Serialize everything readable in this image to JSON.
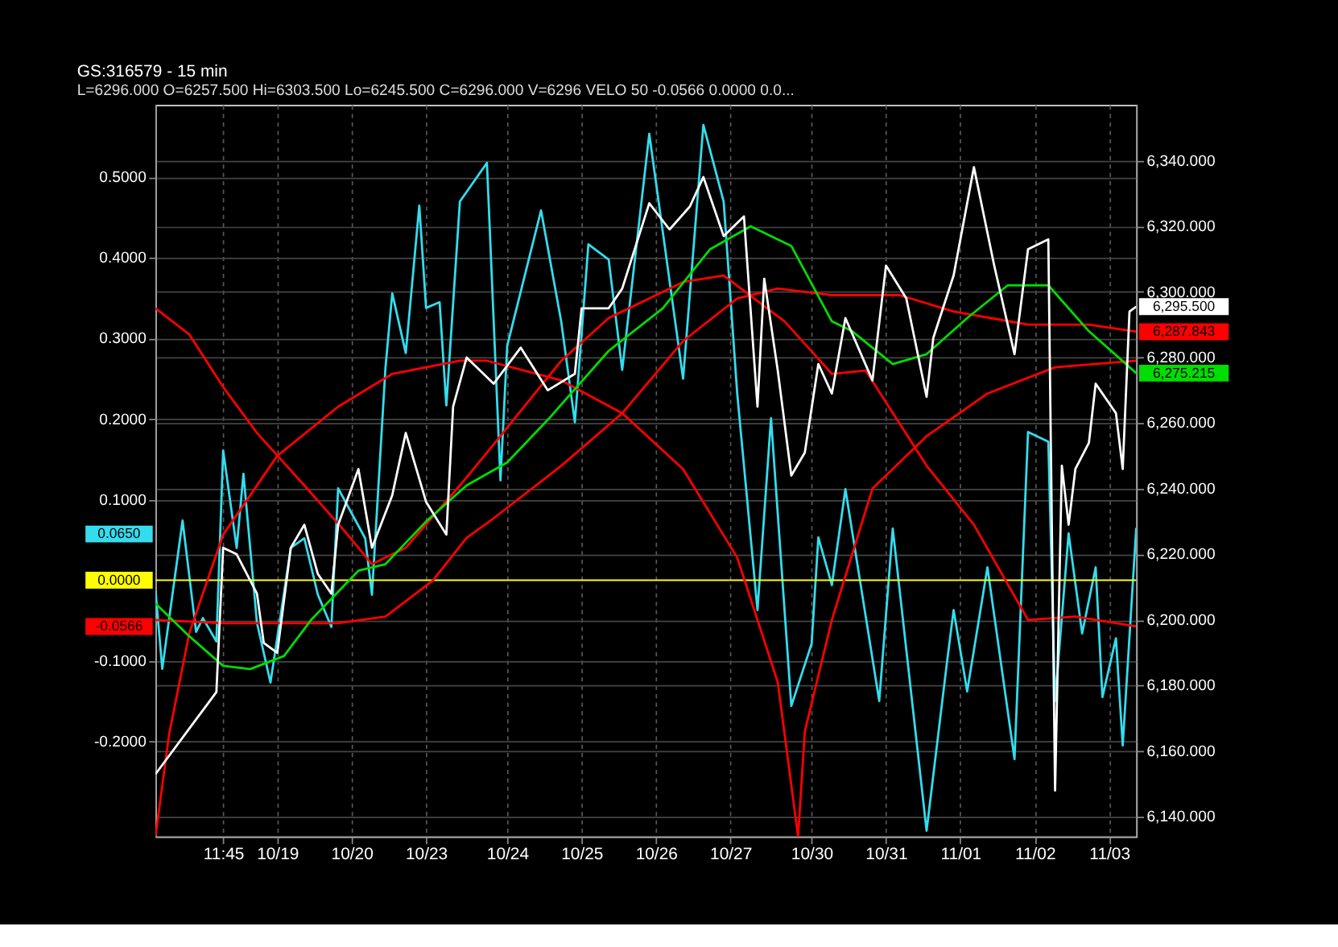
{
  "chart_data": {
    "type": "line",
    "title": "GS:316579 - 15 min",
    "annotations": [
      "L=6296.000",
      "O=6257.500",
      "Hi=6303.500",
      "Lo=6245.500",
      "C=6296.000",
      "V=6296",
      "VELO 50",
      "-0.0566",
      "0.0000",
      "0.0...",
      "0.0650",
      "-0.0566"
    ],
    "categories": [
      null,
      null,
      null,
      null,
      null,
      null,
      null,
      null,
      null,
      null,
      "11:45",
      null,
      null,
      null,
      null,
      null,
      null,
      null,
      "10/19",
      null,
      null,
      null,
      null,
      null,
      null,
      null,
      null,
      null,
      null,
      "10/20",
      null,
      null,
      null,
      null,
      null,
      null,
      null,
      null,
      null,
      null,
      "10/23",
      null,
      null,
      null,
      null,
      null,
      null,
      null,
      null,
      null,
      null,
      null,
      "10/24",
      null,
      null,
      null,
      null,
      null,
      null,
      null,
      null,
      null,
      null,
      "10/25",
      null,
      null,
      null,
      null,
      null,
      null,
      null,
      null,
      null,
      null,
      "10/26",
      null,
      null,
      null,
      null,
      null,
      null,
      null,
      null,
      null,
      null,
      "10/27",
      null,
      null,
      null,
      null,
      null,
      null,
      null,
      null,
      null,
      null,
      null,
      "10/30",
      null,
      null,
      null,
      null,
      null,
      null,
      null,
      null,
      null,
      null,
      "10/31",
      null,
      null,
      null,
      null,
      null,
      null,
      null,
      null,
      null,
      null,
      "11/01",
      null,
      null,
      null,
      null,
      null,
      null,
      null,
      null,
      null,
      null,
      "11/02",
      null,
      null,
      null,
      null,
      null,
      null,
      null,
      null,
      null,
      null,
      "11/03",
      null,
      null,
      null,
      null
    ],
    "ylim": [
      -0.318,
      0.59
    ],
    "yticks": [
      {
        "value": -0.2,
        "label": "-0.2000"
      },
      {
        "value": -0.1,
        "label": "-0.1000"
      },
      {
        "value": 0.1,
        "label": "0.1000"
      },
      {
        "value": 0.2,
        "label": "0.2000"
      },
      {
        "value": 0.3,
        "label": "0.3000"
      },
      {
        "value": 0.4,
        "label": "0.4000"
      },
      {
        "value": 0.5,
        "label": "0.5000"
      }
    ],
    "y2lim": [
      6134,
      6357
    ],
    "y2ticks": [
      {
        "value": 6140,
        "label": "6,140.000"
      },
      {
        "value": 6160,
        "label": "6,160.000"
      },
      {
        "value": 6180,
        "label": "6,180.000"
      },
      {
        "value": 6200,
        "label": "6,200.000"
      },
      {
        "value": 6220,
        "label": "6,220.000"
      },
      {
        "value": 6240,
        "label": "6,240.000"
      },
      {
        "value": 6260,
        "label": "6,260.000"
      },
      {
        "value": 6280,
        "label": "6,280.000"
      },
      {
        "value": 6300,
        "label": "6,300.000"
      },
      {
        "value": 6320,
        "label": "6,320.000"
      },
      {
        "value": 6340,
        "label": "6,340.000"
      }
    ],
    "grid": true,
    "ref_lines": [
      {
        "axis": "y",
        "value": 0,
        "label": "0.0000",
        "color": "#ffff00"
      }
    ],
    "series": [
      {
        "color": "#ff0000",
        "axis": "y2",
        "values": [
          6134,
          null,
          6165,
          null,
          null,
          6196,
          null,
          null,
          null,
          null,
          6226,
          null,
          null,
          null,
          null,
          null,
          null,
          null,
          6250,
          null,
          null,
          null,
          null,
          null,
          null,
          null,
          null,
          6265,
          null,
          null,
          null,
          null,
          null,
          null,
          null,
          6275,
          null,
          null,
          null,
          null,
          null,
          null,
          null,
          null,
          null,
          6279,
          null,
          null,
          null,
          6279,
          null,
          null,
          null,
          null,
          null,
          null,
          null,
          null,
          null,
          null,
          6273,
          null,
          null,
          null,
          null,
          null,
          null,
          null,
          null,
          6263,
          null,
          null,
          null,
          null,
          null,
          null,
          null,
          null,
          6246,
          null,
          null,
          null,
          null,
          null,
          null,
          null,
          6219,
          null,
          null,
          null,
          null,
          null,
          6181,
          null,
          null,
          6134,
          6166,
          null,
          null,
          null,
          6200,
          null,
          null,
          null,
          null,
          null,
          6240,
          null,
          null,
          null,
          null,
          null,
          null,
          null,
          6256,
          null,
          null,
          null,
          null,
          null,
          null,
          null,
          null,
          6269,
          null,
          null,
          null,
          null,
          null,
          null,
          null,
          null,
          null,
          6277,
          null,
          null,
          null,
          null,
          null,
          null,
          null,
          null,
          null,
          null,
          null,
          6279
        ]
      },
      {
        "color": "#ff0000",
        "axis": "y2",
        "values": [
          6295,
          null,
          null,
          null,
          null,
          6287,
          null,
          null,
          null,
          null,
          6271,
          null,
          null,
          null,
          null,
          6257,
          null,
          null,
          null,
          null,
          null,
          null,
          6241,
          null,
          null,
          null,
          null,
          null,
          6227,
          null,
          null,
          null,
          6217,
          null,
          null,
          null,
          null,
          6222,
          null,
          null,
          null,
          null,
          null,
          null,
          null,
          6241,
          null,
          null,
          null,
          6251,
          null,
          null,
          null,
          null,
          null,
          null,
          null,
          null,
          null,
          null,
          6279,
          null,
          null,
          null,
          null,
          null,
          null,
          6292,
          null,
          null,
          null,
          null,
          null,
          null,
          null,
          null,
          null,
          null,
          6303,
          null,
          null,
          null,
          null,
          null,
          6305,
          null,
          null,
          null,
          null,
          null,
          null,
          null,
          null,
          6291,
          null,
          null,
          null,
          null,
          null,
          null,
          6275,
          null,
          null,
          null,
          null,
          6276,
          null,
          null,
          null,
          null,
          null,
          null,
          null,
          null,
          6247,
          null,
          null,
          null,
          null,
          null,
          null,
          6229,
          null,
          null,
          null,
          null,
          null,
          null,
          null,
          6200,
          null,
          null,
          null,
          null,
          null,
          null,
          6201,
          null,
          null,
          null,
          null,
          null,
          null,
          null,
          null,
          6198
        ]
      },
      {
        "color": "#ff0000",
        "axis": "y2",
        "values": [
          6200,
          null,
          null,
          null,
          null,
          null,
          null,
          null,
          null,
          null,
          6199,
          null,
          null,
          null,
          null,
          null,
          null,
          null,
          6199,
          null,
          null,
          null,
          null,
          null,
          null,
          null,
          null,
          6199,
          null,
          null,
          null,
          null,
          null,
          null,
          6201,
          null,
          null,
          null,
          null,
          null,
          null,
          6212,
          null,
          null,
          null,
          null,
          6225,
          null,
          null,
          null,
          6231,
          null,
          null,
          null,
          null,
          null,
          null,
          null,
          null,
          null,
          6247,
          null,
          null,
          null,
          null,
          null,
          null,
          null,
          null,
          6263,
          null,
          null,
          null,
          null,
          null,
          null,
          null,
          null,
          6285,
          null,
          null,
          null,
          null,
          null,
          null,
          null,
          6298,
          null,
          null,
          null,
          null,
          null,
          6301,
          null,
          null,
          null,
          null,
          null,
          null,
          null,
          6299,
          null,
          null,
          null,
          null,
          null,
          null,
          null,
          null,
          null,
          6299,
          null,
          null,
          null,
          null,
          null,
          null,
          null,
          6294,
          null,
          null,
          null,
          null,
          null,
          null,
          null,
          null,
          null,
          null,
          6290,
          null,
          null,
          null,
          null,
          null,
          null,
          null,
          null,
          6290,
          null,
          null,
          null,
          null,
          null,
          null,
          6287.843
        ],
        "value_labels": [
          null,
          null,
          null,
          null,
          null,
          null,
          null,
          null,
          null,
          null,
          null,
          null,
          null,
          null,
          null,
          null,
          null,
          null,
          null,
          null,
          null,
          null,
          null,
          null,
          null,
          null,
          null,
          null,
          null,
          null,
          null,
          null,
          null,
          null,
          null,
          null,
          null,
          null,
          null,
          null,
          null,
          null,
          null,
          null,
          null,
          null,
          null,
          null,
          null,
          null,
          null,
          null,
          null,
          null,
          null,
          null,
          null,
          null,
          null,
          null,
          null,
          null,
          null,
          null,
          null,
          null,
          null,
          null,
          null,
          null,
          null,
          null,
          null,
          null,
          null,
          null,
          null,
          null,
          null,
          null,
          null,
          null,
          null,
          null,
          null,
          null,
          null,
          null,
          null,
          null,
          null,
          null,
          null,
          null,
          null,
          null,
          null,
          null,
          null,
          null,
          null,
          null,
          null,
          null,
          null,
          null,
          null,
          null,
          null,
          null,
          null,
          null,
          null,
          null,
          null,
          null,
          null,
          null,
          null,
          null,
          null,
          null,
          null,
          null,
          null,
          null,
          null,
          null,
          null,
          null,
          null,
          null,
          null,
          null,
          null,
          null,
          null,
          null,
          null,
          null,
          null,
          null,
          null,
          null,
          null,
          "6,287.843"
        ]
      },
      {
        "color": "#00dd00",
        "axis": "y2",
        "values": [
          6205,
          null,
          null,
          null,
          null,
          6195,
          null,
          null,
          null,
          null,
          6186,
          null,
          null,
          null,
          6185,
          null,
          null,
          null,
          null,
          6189,
          null,
          null,
          null,
          6200,
          null,
          null,
          null,
          null,
          null,
          null,
          6215,
          null,
          null,
          null,
          6217,
          null,
          null,
          null,
          null,
          null,
          6230,
          null,
          null,
          null,
          null,
          null,
          6241,
          null,
          null,
          null,
          null,
          null,
          6248,
          null,
          null,
          null,
          null,
          null,
          6261,
          null,
          null,
          null,
          null,
          null,
          null,
          null,
          null,
          6282,
          null,
          null,
          null,
          null,
          null,
          null,
          null,
          6295,
          null,
          null,
          null,
          null,
          null,
          null,
          6313,
          null,
          null,
          null,
          null,
          null,
          6320,
          null,
          null,
          null,
          null,
          null,
          6314,
          null,
          null,
          null,
          null,
          null,
          6291,
          null,
          null,
          6288,
          null,
          null,
          null,
          null,
          null,
          6278,
          null,
          null,
          null,
          null,
          6281,
          null,
          null,
          null,
          null,
          null,
          6292,
          null,
          null,
          null,
          null,
          null,
          6302,
          null,
          null,
          null,
          null,
          null,
          6302,
          null,
          null,
          null,
          null,
          null,
          6288,
          null,
          null,
          null,
          null,
          null,
          null,
          6275.215
        ],
        "value_labels": [
          null,
          null,
          null,
          null,
          null,
          null,
          null,
          null,
          null,
          null,
          null,
          null,
          null,
          null,
          null,
          null,
          null,
          null,
          null,
          null,
          null,
          null,
          null,
          null,
          null,
          null,
          null,
          null,
          null,
          null,
          null,
          null,
          null,
          null,
          null,
          null,
          null,
          null,
          null,
          null,
          null,
          null,
          null,
          null,
          null,
          null,
          null,
          null,
          null,
          null,
          null,
          null,
          null,
          null,
          null,
          null,
          null,
          null,
          null,
          null,
          null,
          null,
          null,
          null,
          null,
          null,
          null,
          null,
          null,
          null,
          null,
          null,
          null,
          null,
          null,
          null,
          null,
          null,
          null,
          null,
          null,
          null,
          null,
          null,
          null,
          null,
          null,
          null,
          null,
          null,
          null,
          null,
          null,
          null,
          null,
          null,
          null,
          null,
          null,
          null,
          null,
          null,
          null,
          null,
          null,
          null,
          null,
          null,
          null,
          null,
          null,
          null,
          null,
          null,
          null,
          null,
          null,
          null,
          null,
          null,
          null,
          null,
          null,
          null,
          null,
          null,
          null,
          null,
          null,
          null,
          null,
          null,
          null,
          null,
          null,
          null,
          null,
          null,
          null,
          null,
          null,
          null,
          null,
          null,
          null,
          "6,275.215"
        ]
      },
      {
        "color": "#33ddee",
        "values": [
          -0.013,
          -0.11,
          null,
          null,
          0.074,
          null,
          -0.064,
          -0.047,
          null,
          -0.076,
          0.161,
          null,
          0.04,
          0.132,
          null,
          -0.053,
          null,
          -0.127,
          null,
          null,
          0.04,
          null,
          0.052,
          null,
          -0.018,
          null,
          -0.058,
          0.114,
          null,
          null,
          null,
          0.052,
          -0.018,
          null,
          0.264,
          0.356,
          null,
          0.282,
          null,
          0.465,
          0.338,
          null,
          0.345,
          0.217,
          null,
          0.47,
          null,
          null,
          null,
          0.518,
          null,
          0.124,
          0.291,
          null,
          null,
          null,
          null,
          0.459,
          null,
          null,
          0.32,
          null,
          0.196,
          null,
          0.417,
          null,
          null,
          0.398,
          null,
          0.261,
          null,
          null,
          null,
          0.554,
          null,
          null,
          null,
          null,
          0.25,
          null,
          null,
          0.565,
          null,
          null,
          0.47,
          null,
          0.232,
          null,
          null,
          -0.037,
          null,
          0.201,
          null,
          null,
          -0.156,
          null,
          null,
          -0.079,
          0.053,
          null,
          -0.006,
          null,
          0.113,
          null,
          null,
          null,
          null,
          -0.15,
          null,
          0.064,
          null,
          null,
          null,
          null,
          -0.311,
          null,
          null,
          -0.103,
          -0.037,
          null,
          -0.138,
          null,
          null,
          0.016,
          null,
          null,
          null,
          -0.222,
          null,
          0.184,
          null,
          null,
          0.172,
          -0.15,
          null,
          0.058,
          null,
          -0.066,
          null,
          0.016,
          -0.145,
          null,
          -0.072,
          -0.205,
          null,
          0.065
        ]
      },
      {
        "color": "#ffffff",
        "axis": "y2",
        "values": [
          6153,
          null,
          null,
          null,
          null,
          null,
          null,
          null,
          null,
          6178,
          6222,
          null,
          6220,
          null,
          null,
          6208,
          6193,
          null,
          6190,
          null,
          6222,
          null,
          6229,
          null,
          6214,
          null,
          6208,
          6229,
          null,
          null,
          6246,
          null,
          6222,
          null,
          null,
          6238,
          null,
          6257,
          null,
          null,
          6236,
          null,
          null,
          6226,
          6265,
          null,
          6280,
          null,
          null,
          null,
          6272,
          null,
          null,
          null,
          6283,
          null,
          null,
          null,
          6270,
          null,
          null,
          null,
          6275,
          6295,
          null,
          null,
          null,
          6295,
          null,
          6301,
          null,
          null,
          null,
          6327,
          null,
          null,
          6319,
          null,
          null,
          6326,
          null,
          6335,
          null,
          null,
          6317,
          null,
          null,
          6323,
          null,
          6265,
          6304,
          null,
          6276,
          null,
          6244,
          null,
          6251,
          null,
          6278,
          null,
          6269,
          null,
          6292,
          null,
          null,
          null,
          6273,
          null,
          6308,
          null,
          null,
          6298,
          null,
          null,
          6268,
          6286,
          null,
          null,
          6305,
          null,
          null,
          6338,
          null,
          null,
          6308,
          null,
          null,
          6281,
          null,
          6313,
          null,
          null,
          6316,
          6148,
          6247,
          6229,
          6246,
          null,
          6254,
          6272,
          null,
          null,
          6263,
          6246,
          6294,
          6295.5
        ],
        "value_labels": [
          null,
          null,
          null,
          null,
          null,
          null,
          null,
          null,
          null,
          null,
          null,
          null,
          null,
          null,
          null,
          null,
          null,
          null,
          null,
          null,
          null,
          null,
          null,
          null,
          null,
          null,
          null,
          null,
          null,
          null,
          null,
          null,
          null,
          null,
          null,
          null,
          null,
          null,
          null,
          null,
          null,
          null,
          null,
          null,
          null,
          null,
          null,
          null,
          null,
          null,
          null,
          null,
          null,
          null,
          null,
          null,
          null,
          null,
          null,
          null,
          null,
          null,
          null,
          null,
          null,
          null,
          null,
          null,
          null,
          null,
          null,
          null,
          null,
          null,
          null,
          null,
          null,
          null,
          null,
          null,
          null,
          null,
          null,
          null,
          null,
          null,
          null,
          null,
          null,
          null,
          null,
          null,
          null,
          null,
          null,
          null,
          null,
          null,
          null,
          null,
          null,
          null,
          null,
          null,
          null,
          null,
          null,
          null,
          null,
          null,
          null,
          null,
          null,
          null,
          null,
          null,
          null,
          null,
          null,
          null,
          null,
          null,
          null,
          null,
          null,
          null,
          null,
          null,
          null,
          null,
          null,
          null,
          null,
          null,
          null,
          null,
          null,
          null,
          null,
          null,
          null,
          null,
          null,
          null,
          null,
          "6,295.500"
        ]
      }
    ]
  }
}
